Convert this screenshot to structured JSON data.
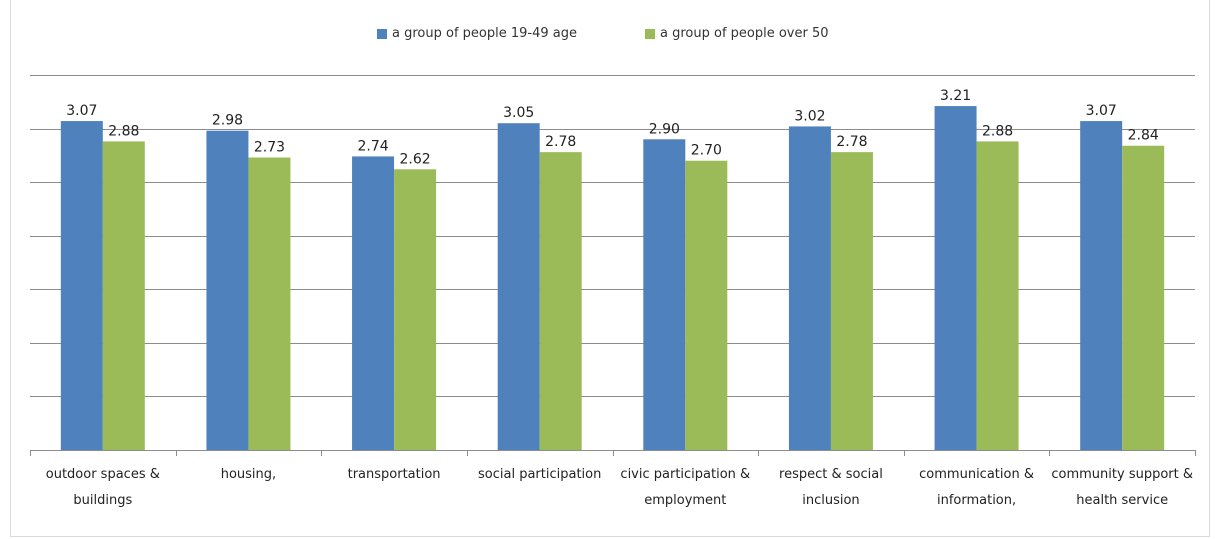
{
  "chart_data": {
    "type": "bar",
    "categories": [
      "outdoor spaces & buildings",
      "housing,",
      "transportation",
      "social participation",
      "civic participation & employment",
      "respect & social inclusion",
      "communication & information,",
      "community support & health service"
    ],
    "series": [
      {
        "name": "a group of people 19-49 age",
        "color": "#4f81bd",
        "values": [
          3.07,
          2.98,
          2.74,
          3.05,
          2.9,
          3.02,
          3.21,
          3.07
        ],
        "labels": [
          "3.07",
          "2.98",
          "2.74",
          "3.05",
          "2.90",
          "3.02",
          "3.21",
          "3.07"
        ]
      },
      {
        "name": "a group of people over 50",
        "color": "#9bbb59",
        "values": [
          2.88,
          2.73,
          2.62,
          2.78,
          2.7,
          2.78,
          2.88,
          2.84
        ],
        "labels": [
          "2.88",
          "2.73",
          "2.62",
          "2.78",
          "2.70",
          "2.78",
          "2.88",
          "2.84"
        ]
      }
    ],
    "ylim": [
      0,
      3.5
    ],
    "grid": true,
    "legend_position": "top"
  }
}
